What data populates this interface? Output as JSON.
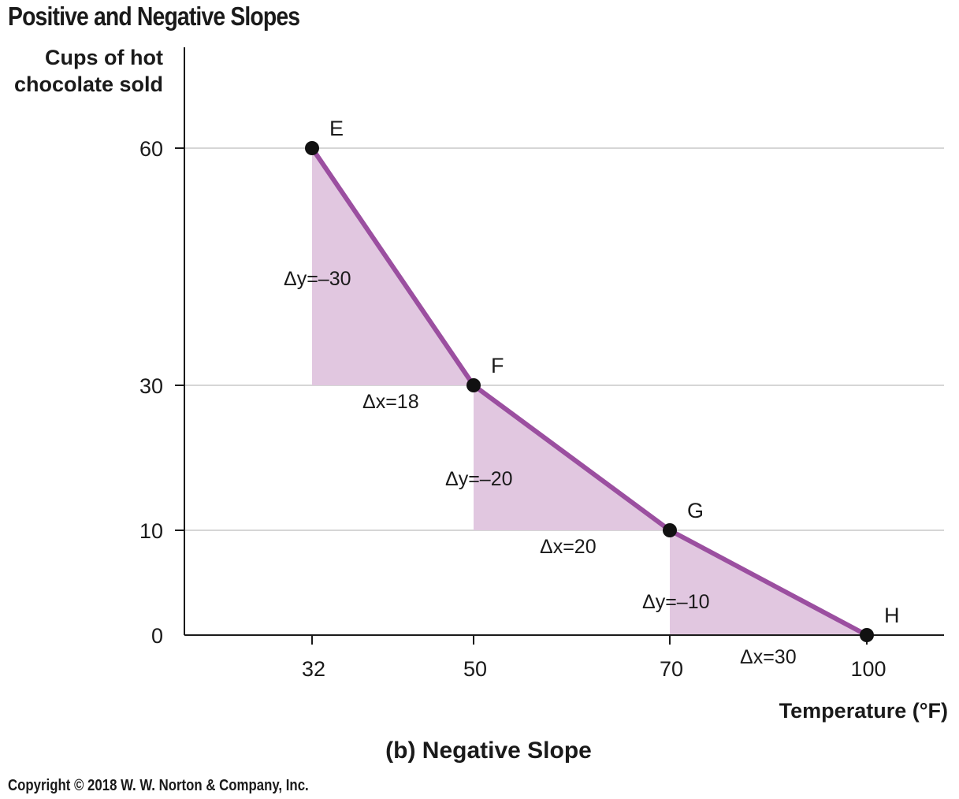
{
  "page_title": "Positive and Negative Slopes",
  "copyright": "Copyright © 2018 W. W. Norton & Company, Inc.",
  "colors": {
    "line": "#9b4fa0",
    "fill": "#e1c7e0",
    "grid": "#d6d6d6",
    "axis": "#1a1a1a",
    "point": "#111111"
  },
  "chart_data": {
    "type": "line",
    "subtitle": "(b) Negative Slope",
    "xlabel": "Temperature (°F)",
    "ylabel_lines": [
      "Cups of hot",
      "chocolate sold"
    ],
    "xlim": [
      0,
      100
    ],
    "ylim": [
      0,
      60
    ],
    "xticks": [
      32,
      50,
      70,
      100
    ],
    "yticks": [
      0,
      10,
      30,
      60
    ],
    "grid": true,
    "points": [
      {
        "label": "E",
        "x": 32,
        "y": 60
      },
      {
        "label": "F",
        "x": 50,
        "y": 30
      },
      {
        "label": "G",
        "x": 70,
        "y": 10
      },
      {
        "label": "H",
        "x": 100,
        "y": 0
      }
    ],
    "annotations": [
      {
        "dy": "Δy=–30",
        "dx": "Δx=18"
      },
      {
        "dy": "Δy=–20",
        "dx": "Δx=20"
      },
      {
        "dy": "Δy=–10",
        "dx": "Δx=30"
      }
    ]
  }
}
